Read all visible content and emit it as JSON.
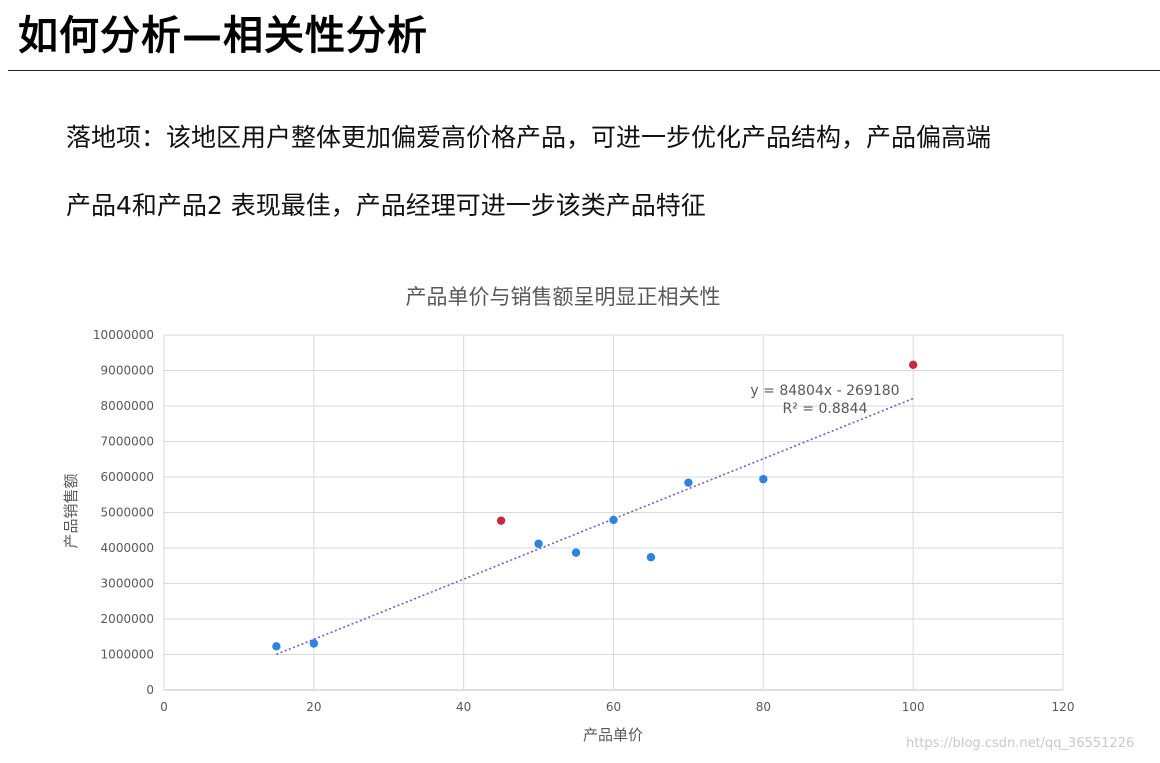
{
  "slide": {
    "title": "如何分析—相关性分析",
    "lines": [
      "落地项：该地区用户整体更加偏爱高价格产品，可进一步优化产品结构，产品偏高端",
      "产品4和产品2 表现最佳，产品经理可进一步该类产品特征"
    ]
  },
  "chart_data": {
    "type": "scatter",
    "title": "产品单价与销售额呈明显正相关性",
    "xlabel": "产品单价",
    "ylabel": "产品销售额",
    "xlim": [
      0,
      120
    ],
    "ylim": [
      0,
      10000000
    ],
    "xticks": [
      "0",
      "20",
      "40",
      "60",
      "80",
      "100",
      "120"
    ],
    "yticks": [
      "0",
      "1000000",
      "2000000",
      "3000000",
      "4000000",
      "5000000",
      "6000000",
      "7000000",
      "8000000",
      "9000000",
      "10000000"
    ],
    "grid": true,
    "points": [
      {
        "x": 15,
        "y": 1230000,
        "color": "#2e83db"
      },
      {
        "x": 20,
        "y": 1310000,
        "color": "#2e83db"
      },
      {
        "x": 45,
        "y": 4770000,
        "color": "#c8283c"
      },
      {
        "x": 50,
        "y": 4120000,
        "color": "#2e83db"
      },
      {
        "x": 55,
        "y": 3870000,
        "color": "#2e83db"
      },
      {
        "x": 60,
        "y": 4790000,
        "color": "#2e83db"
      },
      {
        "x": 65,
        "y": 3740000,
        "color": "#2e83db"
      },
      {
        "x": 70,
        "y": 5840000,
        "color": "#2e83db"
      },
      {
        "x": 80,
        "y": 5940000,
        "color": "#2e83db"
      },
      {
        "x": 100,
        "y": 9160000,
        "color": "#c8283c"
      }
    ],
    "trendline": {
      "equation": "y = 84804x - 269180",
      "r2": "R² = 0.8844",
      "slope": 84804,
      "intercept": -269180,
      "x_range": [
        15,
        100
      ],
      "color": "#6a5fd0"
    }
  },
  "watermark": "https://blog.csdn.net/qq_36551226"
}
